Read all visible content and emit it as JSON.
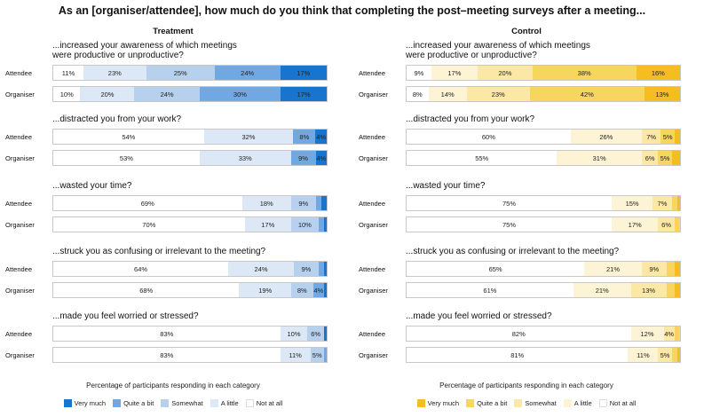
{
  "title": "As an [organiser/attendee], how much do you think that completing the post–meeting surveys after a meeting...",
  "chart_data": {
    "type": "bar",
    "orientation": "horizontal-stacked-percent",
    "categories_order": [
      "Not at all",
      "A little",
      "Somewhat",
      "Quite a bit",
      "Very much"
    ],
    "caption": "Percentage of participants responding in each category",
    "legend": [
      "Very much",
      "Quite a bit",
      "Somewhat",
      "A little",
      "Not at all"
    ],
    "questions": [
      {
        "label": "...increased your awareness of which meetings were productive or unproductive?",
        "label_lines": [
          "...increased your awareness of which meetings",
          "were productive or unproductive?"
        ]
      },
      {
        "label": "...distracted you from your work?",
        "label_lines": [
          "...distracted you from your work?"
        ]
      },
      {
        "label": "...wasted your time?",
        "label_lines": [
          "...wasted your time?"
        ]
      },
      {
        "label": "...struck you as confusing or irrelevant to the meeting?",
        "label_lines": [
          "...struck you as confusing or irrelevant to the meeting?"
        ]
      },
      {
        "label": "...made you feel worried or stressed?",
        "label_lines": [
          "...made you feel worried or stressed?"
        ]
      }
    ],
    "panels": [
      {
        "title": "Treatment",
        "colors": {
          "Very much": "#1874cd",
          "Quite a bit": "#6fa8e3",
          "Somewhat": "#b6d0ee",
          "A little": "#dde8f6",
          "Not at all": "#ffffff"
        },
        "rows": [
          [
            {
              "group": "Attendee",
              "values": [
                11,
                23,
                25,
                24,
                17
              ]
            },
            {
              "group": "Organiser",
              "values": [
                10,
                20,
                24,
                30,
                17
              ]
            }
          ],
          [
            {
              "group": "Attendee",
              "values": [
                54,
                32,
                0,
                8,
                4
              ]
            },
            {
              "group": "Organiser",
              "values": [
                53,
                33,
                0,
                9,
                4
              ]
            }
          ],
          [
            {
              "group": "Attendee",
              "values": [
                69,
                18,
                9,
                2,
                2
              ]
            },
            {
              "group": "Organiser",
              "values": [
                70,
                17,
                10,
                2,
                1
              ]
            }
          ],
          [
            {
              "group": "Attendee",
              "values": [
                64,
                24,
                9,
                2,
                1
              ]
            },
            {
              "group": "Organiser",
              "values": [
                68,
                19,
                8,
                4,
                1
              ]
            }
          ],
          [
            {
              "group": "Attendee",
              "values": [
                83,
                10,
                6,
                0,
                1
              ]
            },
            {
              "group": "Organiser",
              "values": [
                83,
                11,
                5,
                1,
                0
              ]
            }
          ]
        ]
      },
      {
        "title": "Control",
        "colors": {
          "Very much": "#f5bd1f",
          "Quite a bit": "#f8d55e",
          "Somewhat": "#fbe8a4",
          "A little": "#fdf4d6",
          "Not at all": "#ffffff"
        },
        "rows": [
          [
            {
              "group": "Attendee",
              "values": [
                9,
                17,
                20,
                38,
                16
              ]
            },
            {
              "group": "Organiser",
              "values": [
                8,
                14,
                23,
                42,
                13
              ]
            }
          ],
          [
            {
              "group": "Attendee",
              "values": [
                60,
                26,
                7,
                5,
                2
              ]
            },
            {
              "group": "Organiser",
              "values": [
                55,
                31,
                6,
                5,
                3
              ]
            }
          ],
          [
            {
              "group": "Attendee",
              "values": [
                75,
                15,
                7,
                2,
                1
              ]
            },
            {
              "group": "Organiser",
              "values": [
                75,
                17,
                6,
                2,
                0
              ]
            }
          ],
          [
            {
              "group": "Attendee",
              "values": [
                65,
                21,
                9,
                3,
                2
              ]
            },
            {
              "group": "Organiser",
              "values": [
                61,
                21,
                13,
                3,
                2
              ]
            }
          ],
          [
            {
              "group": "Attendee",
              "values": [
                82,
                12,
                4,
                2,
                0
              ]
            },
            {
              "group": "Organiser",
              "values": [
                81,
                11,
                5,
                2,
                1
              ]
            }
          ]
        ]
      }
    ]
  }
}
